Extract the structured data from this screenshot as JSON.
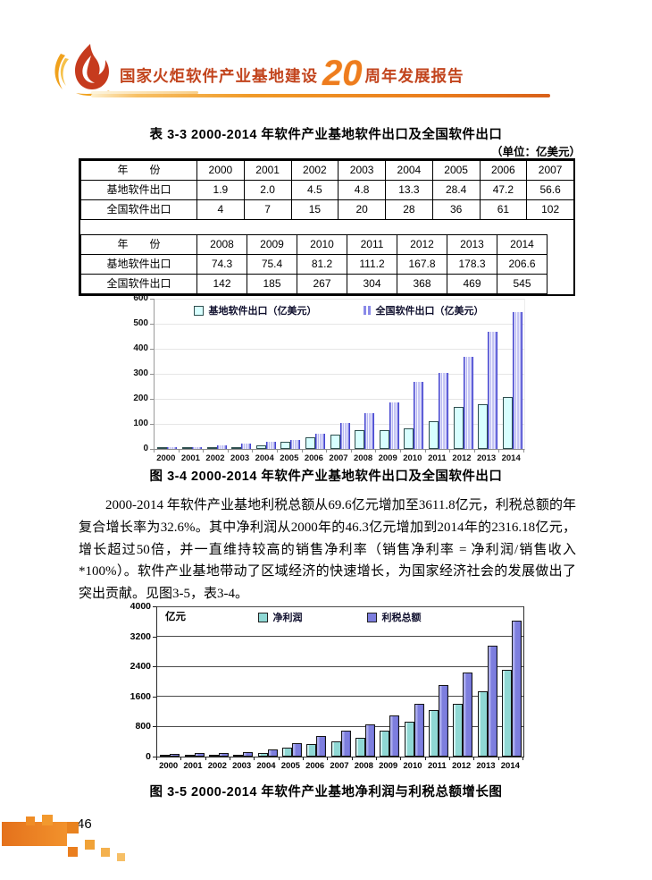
{
  "header": {
    "title_left": "国家火炬软件产业基地建设",
    "title_num": "20",
    "title_right": "周年发展报告"
  },
  "table": {
    "title": "表 3-3  2000-2014 年软件产业基地软件出口及全国软件出口",
    "unit": "（单位：亿美元）",
    "row_label_header": "年　　份",
    "sections": [
      {
        "years": [
          "2000",
          "2001",
          "2002",
          "2003",
          "2004",
          "2005",
          "2006",
          "2007"
        ],
        "rows": [
          {
            "label": "基地软件出口",
            "values": [
              "1.9",
              "2.0",
              "4.5",
              "4.8",
              "13.3",
              "28.4",
              "47.2",
              "56.6"
            ]
          },
          {
            "label": "全国软件出口",
            "values": [
              "4",
              "7",
              "15",
              "20",
              "28",
              "36",
              "61",
              "102"
            ]
          }
        ]
      },
      {
        "years": [
          "2008",
          "2009",
          "2010",
          "2011",
          "2012",
          "2013",
          "2014"
        ],
        "rows": [
          {
            "label": "基地软件出口",
            "values": [
              "74.3",
              "75.4",
              "81.2",
              "111.2",
              "167.8",
              "178.3",
              "206.6"
            ]
          },
          {
            "label": "全国软件出口",
            "values": [
              "142",
              "185",
              "267",
              "304",
              "368",
              "469",
              "545"
            ]
          }
        ],
        "trailing_empty_cell": true
      }
    ]
  },
  "chart_data": [
    {
      "type": "bar",
      "title": "图 3-4 2000-2014 年软件产业基地软件出口及全国软件出口",
      "categories": [
        "2000",
        "2001",
        "2002",
        "2003",
        "2004",
        "2005",
        "2006",
        "2007",
        "2008",
        "2009",
        "2010",
        "2011",
        "2012",
        "2013",
        "2014"
      ],
      "series": [
        {
          "name": "基地软件出口（亿美元）",
          "values": [
            1.9,
            2.0,
            4.5,
            4.8,
            13.3,
            28.4,
            47.2,
            56.6,
            74.3,
            75.4,
            81.2,
            111.2,
            167.8,
            178.3,
            206.6
          ]
        },
        {
          "name": "全国软件出口（亿美元）",
          "values": [
            4,
            7,
            15,
            20,
            28,
            36,
            61,
            102,
            142,
            185,
            267,
            304,
            368,
            469,
            545
          ]
        }
      ],
      "xlabel": "",
      "ylabel": "",
      "ylim": [
        0,
        600
      ],
      "yticks": [
        "0",
        "100",
        "200",
        "300",
        "400",
        "500",
        "600"
      ],
      "grid": "horizontal-light",
      "legend_position": "top-center-inside"
    },
    {
      "type": "bar",
      "title": "图 3-5 2000-2014 年软件产业基地净利润与利税总额增长图",
      "categories": [
        "2000",
        "2001",
        "2002",
        "2003",
        "2004",
        "2005",
        "2006",
        "2007",
        "2008",
        "2009",
        "2010",
        "2011",
        "2012",
        "2013",
        "2014"
      ],
      "series": [
        {
          "name": "净利润",
          "values": [
            46.3,
            52,
            55,
            60,
            90,
            250,
            330,
            410,
            490,
            700,
            920,
            1230,
            1400,
            1740,
            2316.18
          ]
        },
        {
          "name": "利税总额",
          "values": [
            69.6,
            95,
            100,
            120,
            185,
            350,
            560,
            680,
            870,
            1100,
            1400,
            1900,
            2250,
            2950,
            3611.8
          ]
        }
      ],
      "xlabel": "",
      "ylabel": "亿元",
      "ylim": [
        0,
        4000
      ],
      "yticks": [
        "0",
        "800",
        "1600",
        "2400",
        "3200",
        "4000"
      ],
      "grid": "horizontal-dark",
      "legend_position": "top-center-inside"
    }
  ],
  "captions": {
    "fig34": "图 3-4  2000-2014 年软件产业基地软件出口及全国软件出口",
    "fig35": "图 3-5  2000-2014 年软件产业基地净利润与利税总额增长图"
  },
  "paragraph": "2000-2014 年软件产业基地利税总额从69.6亿元增加至3611.8亿元，利税总额的年复合增长率为32.6%。其中净利润从2000年的46.3亿元增加到2014年的2316.18亿元，增长超过50倍，并一直维持较高的销售净利率（销售净利率 = 净利润/销售收入 *100%）。软件产业基地带动了区域经济的快速增长，为国家经济社会的发展做出了突出贡献。见图3-5，表3-4。",
  "footer": {
    "page_number": "46"
  },
  "colors": {
    "accent_orange": "#ee7c1e",
    "title_red": "#c2441d",
    "chart1_base_cyan": "#d8ffff",
    "chart1_national_blue": "#4343cf",
    "chart2_net_profit_cyan": "#8fd8d4",
    "chart2_total_blue": "#7d7ede"
  }
}
